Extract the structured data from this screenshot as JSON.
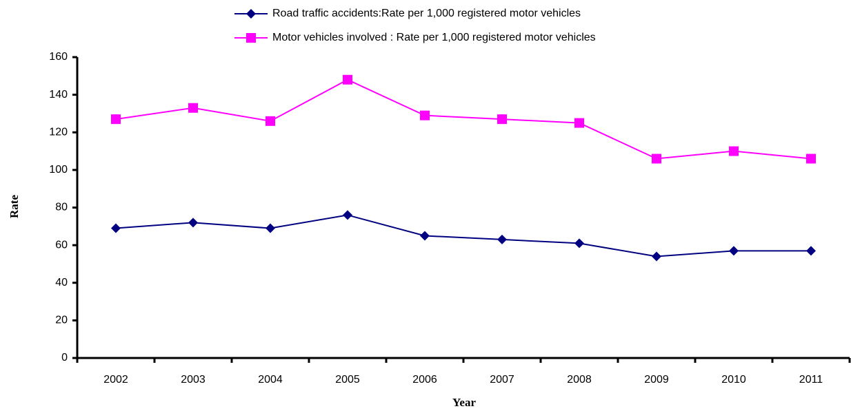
{
  "chart_data": {
    "type": "line",
    "x_label": "Year",
    "y_label": "Rate",
    "categories": [
      "2002",
      "2003",
      "2004",
      "2005",
      "2006",
      "2007",
      "2008",
      "2009",
      "2010",
      "2011"
    ],
    "series": [
      {
        "name": "Road traffic accidents:Rate per 1,000 registered motor vehicles",
        "color": "#000080",
        "marker": "diamond",
        "values": [
          69,
          72,
          69,
          76,
          65,
          63,
          61,
          54,
          57,
          57
        ]
      },
      {
        "name": "Motor vehicles involved : Rate per 1,000 registered motor vehicles",
        "color": "#ff00ff",
        "marker": "square",
        "values": [
          127,
          133,
          126,
          148,
          129,
          127,
          125,
          106,
          110,
          106
        ]
      }
    ],
    "ylim": [
      0,
      160
    ],
    "yticks": [
      0,
      20,
      40,
      60,
      80,
      100,
      120,
      140,
      160
    ],
    "grid": false
  }
}
